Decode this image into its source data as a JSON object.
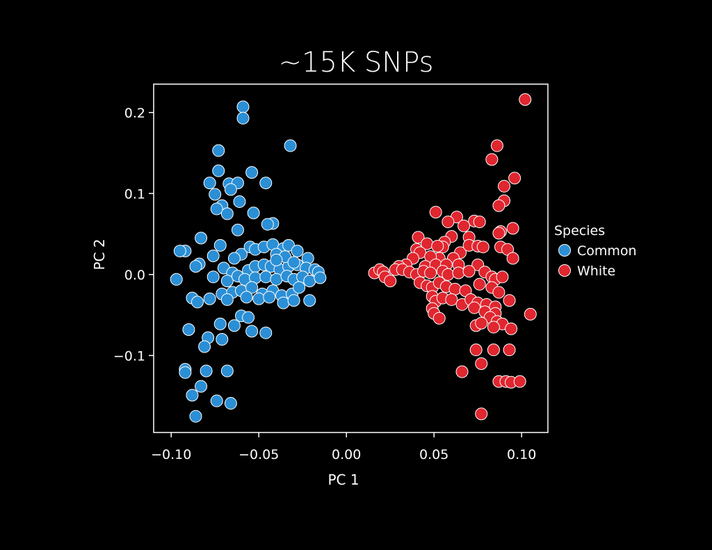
{
  "chart_data": {
    "type": "scatter",
    "title": "~15K SNPs",
    "xlabel": "PC 1",
    "ylabel": "PC 2",
    "xlim": [
      -0.11,
      0.115
    ],
    "ylim": [
      -0.195,
      0.235
    ],
    "xticks": [
      -0.1,
      -0.05,
      0.0,
      0.05,
      0.1
    ],
    "xtick_labels": [
      "−0.10",
      "−0.05",
      "0.00",
      "0.05",
      "0.10"
    ],
    "yticks": [
      0.2,
      0.1,
      0.0,
      -0.1
    ],
    "ytick_labels": [
      "0.2",
      "0.1",
      "0.0",
      "−0.1"
    ],
    "grid": false,
    "legend": {
      "title": "Species",
      "placement": "right"
    },
    "series": [
      {
        "name": "Common",
        "color": "#2b8fd6",
        "points": [
          [
            -0.059,
            0.207
          ],
          [
            -0.059,
            0.193
          ],
          [
            -0.032,
            0.159
          ],
          [
            -0.073,
            0.153
          ],
          [
            -0.073,
            0.128
          ],
          [
            -0.054,
            0.126
          ],
          [
            -0.078,
            0.113
          ],
          [
            -0.067,
            0.112
          ],
          [
            -0.062,
            0.113
          ],
          [
            -0.046,
            0.113
          ],
          [
            -0.066,
            0.105
          ],
          [
            -0.075,
            0.099
          ],
          [
            -0.061,
            0.09
          ],
          [
            -0.071,
            0.085
          ],
          [
            -0.074,
            0.081
          ],
          [
            -0.068,
            0.075
          ],
          [
            -0.053,
            0.076
          ],
          [
            -0.042,
            0.063
          ],
          [
            -0.045,
            0.062
          ],
          [
            -0.062,
            0.055
          ],
          [
            -0.083,
            0.045
          ],
          [
            -0.092,
            0.029
          ],
          [
            -0.095,
            0.029
          ],
          [
            -0.076,
            0.023
          ],
          [
            -0.072,
            0.036
          ],
          [
            -0.06,
            0.025
          ],
          [
            -0.064,
            0.02
          ],
          [
            -0.055,
            0.034
          ],
          [
            -0.052,
            0.031
          ],
          [
            -0.047,
            0.034
          ],
          [
            -0.042,
            0.037
          ],
          [
            -0.036,
            0.032
          ],
          [
            -0.033,
            0.036
          ],
          [
            -0.028,
            0.029
          ],
          [
            -0.022,
            0.02
          ],
          [
            -0.084,
            0.013
          ],
          [
            -0.086,
            0.01
          ],
          [
            -0.07,
            0.008
          ],
          [
            -0.065,
            0.002
          ],
          [
            -0.056,
            0.005
          ],
          [
            -0.052,
            0.01
          ],
          [
            -0.047,
            0.012
          ],
          [
            -0.043,
            0.01
          ],
          [
            -0.038,
            0.006
          ],
          [
            -0.033,
            0.01
          ],
          [
            -0.028,
            0.012
          ],
          [
            -0.023,
            0.008
          ],
          [
            -0.018,
            0.006
          ],
          [
            -0.016,
            0.003
          ],
          [
            -0.097,
            -0.006
          ],
          [
            -0.076,
            -0.003
          ],
          [
            -0.068,
            -0.008
          ],
          [
            -0.062,
            -0.002
          ],
          [
            -0.058,
            -0.006
          ],
          [
            -0.052,
            -0.004
          ],
          [
            -0.046,
            -0.003
          ],
          [
            -0.04,
            -0.006
          ],
          [
            -0.034,
            -0.002
          ],
          [
            -0.03,
            -0.006
          ],
          [
            -0.025,
            -0.003
          ],
          [
            -0.021,
            -0.008
          ],
          [
            -0.015,
            -0.004
          ],
          [
            -0.071,
            -0.024
          ],
          [
            -0.065,
            -0.022
          ],
          [
            -0.06,
            -0.02
          ],
          [
            -0.054,
            -0.016
          ],
          [
            -0.048,
            -0.024
          ],
          [
            -0.042,
            -0.02
          ],
          [
            -0.037,
            -0.026
          ],
          [
            -0.031,
            -0.024
          ],
          [
            -0.027,
            -0.016
          ],
          [
            -0.088,
            -0.029
          ],
          [
            -0.085,
            -0.034
          ],
          [
            -0.078,
            -0.03
          ],
          [
            -0.068,
            -0.031
          ],
          [
            -0.057,
            -0.028
          ],
          [
            -0.05,
            -0.03
          ],
          [
            -0.044,
            -0.028
          ],
          [
            -0.036,
            -0.035
          ],
          [
            -0.03,
            -0.032
          ],
          [
            -0.021,
            -0.032
          ],
          [
            -0.06,
            -0.051
          ],
          [
            -0.056,
            -0.053
          ],
          [
            -0.072,
            -0.061
          ],
          [
            -0.064,
            -0.063
          ],
          [
            -0.054,
            -0.07
          ],
          [
            -0.046,
            -0.072
          ],
          [
            -0.09,
            -0.068
          ],
          [
            -0.079,
            -0.078
          ],
          [
            -0.081,
            -0.089
          ],
          [
            -0.071,
            -0.08
          ],
          [
            -0.092,
            -0.117
          ],
          [
            -0.092,
            -0.121
          ],
          [
            -0.08,
            -0.119
          ],
          [
            -0.068,
            -0.119
          ],
          [
            -0.083,
            -0.138
          ],
          [
            -0.088,
            -0.149
          ],
          [
            -0.074,
            -0.156
          ],
          [
            -0.066,
            -0.159
          ],
          [
            -0.086,
            -0.175
          ],
          [
            -0.04,
            0.025
          ],
          [
            -0.035,
            0.022
          ],
          [
            -0.03,
            0.015
          ],
          [
            -0.04,
            0.018
          ]
        ]
      },
      {
        "name": "White",
        "color": "#e0262f",
        "points": [
          [
            0.102,
            0.216
          ],
          [
            0.086,
            0.159
          ],
          [
            0.083,
            0.142
          ],
          [
            0.096,
            0.119
          ],
          [
            0.09,
            0.109
          ],
          [
            0.09,
            0.091
          ],
          [
            0.087,
            0.085
          ],
          [
            0.051,
            0.077
          ],
          [
            0.063,
            0.071
          ],
          [
            0.058,
            0.065
          ],
          [
            0.073,
            0.066
          ],
          [
            0.076,
            0.065
          ],
          [
            0.067,
            0.06
          ],
          [
            0.095,
            0.057
          ],
          [
            0.088,
            0.053
          ],
          [
            0.041,
            0.046
          ],
          [
            0.087,
            0.051
          ],
          [
            0.07,
            0.046
          ],
          [
            0.06,
            0.047
          ],
          [
            0.056,
            0.04
          ],
          [
            0.046,
            0.038
          ],
          [
            0.055,
            0.034
          ],
          [
            0.052,
            0.035
          ],
          [
            0.04,
            0.031
          ],
          [
            0.042,
            0.027
          ],
          [
            0.065,
            0.027
          ],
          [
            0.07,
            0.036
          ],
          [
            0.075,
            0.035
          ],
          [
            0.078,
            0.034
          ],
          [
            0.088,
            0.034
          ],
          [
            0.092,
            0.031
          ],
          [
            0.061,
            0.02
          ],
          [
            0.053,
            0.02
          ],
          [
            0.048,
            0.022
          ],
          [
            0.038,
            0.02
          ],
          [
            0.034,
            0.012
          ],
          [
            0.03,
            0.01
          ],
          [
            0.045,
            0.01
          ],
          [
            0.051,
            0.012
          ],
          [
            0.057,
            0.012
          ],
          [
            0.064,
            0.012
          ],
          [
            0.075,
            0.012
          ],
          [
            0.095,
            0.02
          ],
          [
            0.016,
            0.002
          ],
          [
            0.019,
            0.006
          ],
          [
            0.021,
            0.003
          ],
          [
            0.022,
            -0.003
          ],
          [
            0.025,
            -0.008
          ],
          [
            0.028,
            0.006
          ],
          [
            0.032,
            0.006
          ],
          [
            0.036,
            0.003
          ],
          [
            0.04,
            0.0
          ],
          [
            0.044,
            0.004
          ],
          [
            0.048,
            0.002
          ],
          [
            0.055,
            0.004
          ],
          [
            0.058,
            0.0
          ],
          [
            0.064,
            0.002
          ],
          [
            0.07,
            0.004
          ],
          [
            0.079,
            0.003
          ],
          [
            0.083,
            -0.003
          ],
          [
            0.085,
            -0.006
          ],
          [
            0.089,
            -0.003
          ],
          [
            0.042,
            -0.01
          ],
          [
            0.046,
            -0.014
          ],
          [
            0.049,
            -0.016
          ],
          [
            0.053,
            -0.01
          ],
          [
            0.057,
            -0.015
          ],
          [
            0.062,
            -0.018
          ],
          [
            0.068,
            -0.02
          ],
          [
            0.076,
            -0.012
          ],
          [
            0.083,
            -0.016
          ],
          [
            0.087,
            -0.022
          ],
          [
            0.049,
            -0.027
          ],
          [
            0.051,
            -0.033
          ],
          [
            0.055,
            -0.029
          ],
          [
            0.06,
            -0.031
          ],
          [
            0.066,
            -0.037
          ],
          [
            0.071,
            -0.031
          ],
          [
            0.075,
            -0.035
          ],
          [
            0.08,
            -0.037
          ],
          [
            0.085,
            -0.04
          ],
          [
            0.093,
            -0.032
          ],
          [
            0.049,
            -0.042
          ],
          [
            0.05,
            -0.048
          ],
          [
            0.053,
            -0.054
          ],
          [
            0.073,
            -0.041
          ],
          [
            0.079,
            -0.046
          ],
          [
            0.085,
            -0.048
          ],
          [
            0.082,
            -0.053
          ],
          [
            0.086,
            -0.058
          ],
          [
            0.089,
            -0.061
          ],
          [
            0.074,
            -0.063
          ],
          [
            0.077,
            -0.06
          ],
          [
            0.084,
            -0.065
          ],
          [
            0.094,
            -0.067
          ],
          [
            0.105,
            -0.049
          ],
          [
            0.074,
            -0.093
          ],
          [
            0.084,
            -0.093
          ],
          [
            0.093,
            -0.093
          ],
          [
            0.077,
            -0.11
          ],
          [
            0.066,
            -0.12
          ],
          [
            0.087,
            -0.132
          ],
          [
            0.091,
            -0.132
          ],
          [
            0.094,
            -0.133
          ],
          [
            0.099,
            -0.132
          ],
          [
            0.077,
            -0.172
          ]
        ]
      }
    ]
  }
}
